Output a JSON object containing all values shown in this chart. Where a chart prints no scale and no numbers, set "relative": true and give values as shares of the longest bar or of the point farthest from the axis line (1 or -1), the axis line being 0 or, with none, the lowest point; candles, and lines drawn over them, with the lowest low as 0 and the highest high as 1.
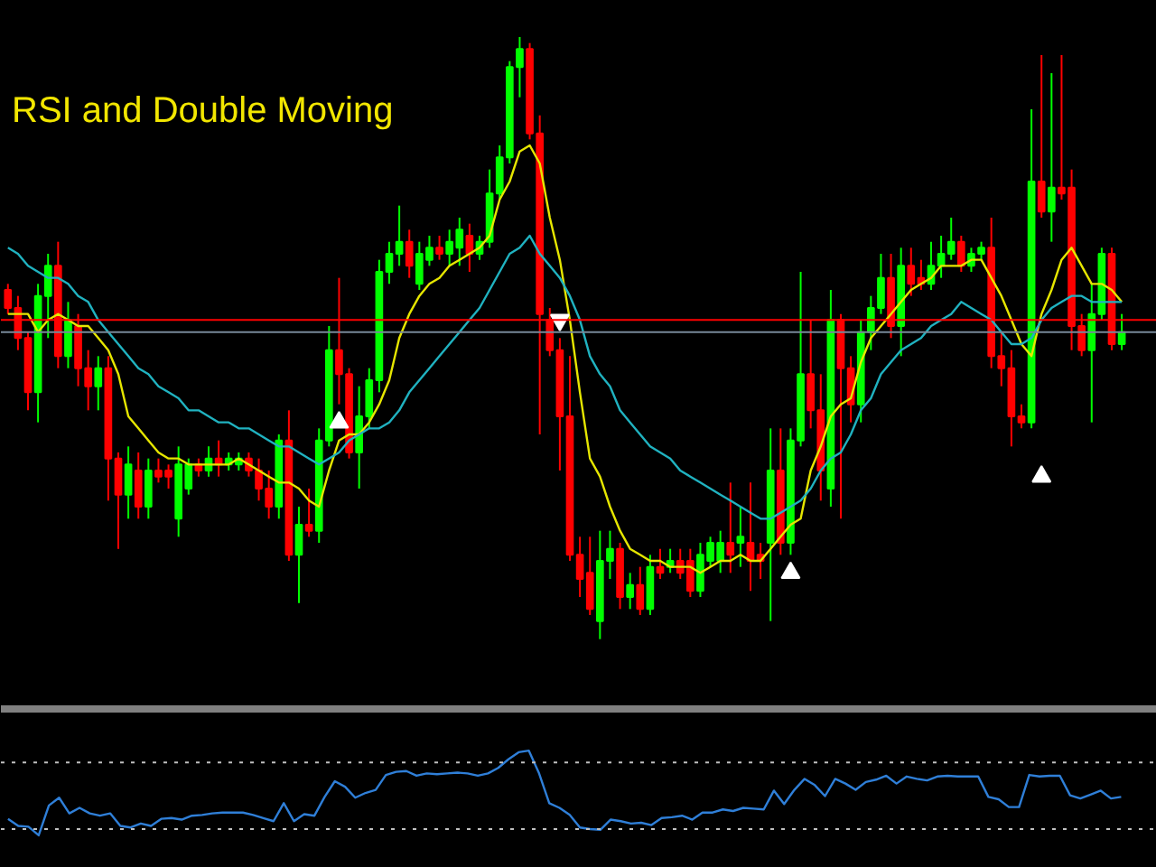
{
  "chart_data": [
    {
      "type": "candlestick",
      "title": "RSI and Double Moving",
      "relative": true,
      "categories": [
        null,
        null,
        null,
        null,
        null,
        null,
        null,
        null,
        null,
        null,
        null,
        null,
        null,
        null,
        null,
        null,
        null,
        null,
        null,
        null,
        null,
        null,
        null,
        null,
        null,
        null,
        null,
        null,
        null,
        null,
        null,
        null,
        null,
        null,
        null,
        null,
        null,
        null,
        null,
        null,
        null,
        null,
        null,
        null,
        null,
        null,
        null,
        null,
        null,
        null,
        null,
        null,
        null,
        null,
        null,
        null,
        null,
        null,
        null,
        null,
        null,
        null,
        null,
        null,
        null,
        null,
        null,
        null,
        null,
        null,
        null,
        null,
        null,
        null,
        null,
        null,
        null,
        null,
        null,
        null,
        null,
        null,
        null,
        null,
        null,
        null,
        null,
        null,
        null,
        null,
        null,
        null,
        null,
        null,
        null,
        null,
        null,
        null,
        null,
        null,
        null,
        null,
        null,
        null,
        null,
        null,
        null,
        null,
        null,
        null,
        null,
        null
      ],
      "ohlc": [
        [
          0.58,
          0.59,
          0.54,
          0.55
        ],
        [
          0.55,
          0.57,
          0.48,
          0.5
        ],
        [
          0.5,
          0.51,
          0.38,
          0.41
        ],
        [
          0.41,
          0.59,
          0.36,
          0.57
        ],
        [
          0.57,
          0.64,
          0.5,
          0.62
        ],
        [
          0.62,
          0.66,
          0.45,
          0.47
        ],
        [
          0.47,
          0.56,
          0.45,
          0.53
        ],
        [
          0.52,
          0.54,
          0.42,
          0.45
        ],
        [
          0.45,
          0.48,
          0.38,
          0.42
        ],
        [
          0.42,
          0.47,
          0.38,
          0.45
        ],
        [
          0.45,
          0.47,
          0.23,
          0.3
        ],
        [
          0.3,
          0.31,
          0.15,
          0.24
        ],
        [
          0.24,
          0.32,
          0.2,
          0.29
        ],
        [
          0.28,
          0.31,
          0.2,
          0.22
        ],
        [
          0.22,
          0.3,
          0.2,
          0.28
        ],
        [
          0.28,
          0.3,
          0.26,
          0.27
        ],
        [
          0.28,
          0.29,
          0.25,
          0.27
        ],
        [
          0.2,
          0.32,
          0.17,
          0.29
        ],
        [
          0.25,
          0.3,
          0.24,
          0.29
        ],
        [
          0.29,
          0.3,
          0.27,
          0.28
        ],
        [
          0.28,
          0.32,
          0.27,
          0.3
        ],
        [
          0.3,
          0.33,
          0.27,
          0.29
        ],
        [
          0.29,
          0.31,
          0.28,
          0.3
        ],
        [
          0.29,
          0.31,
          0.28,
          0.3
        ],
        [
          0.3,
          0.31,
          0.27,
          0.28
        ],
        [
          0.28,
          0.3,
          0.23,
          0.25
        ],
        [
          0.25,
          0.28,
          0.2,
          0.22
        ],
        [
          0.22,
          0.34,
          0.2,
          0.33
        ],
        [
          0.33,
          0.38,
          0.13,
          0.14
        ],
        [
          0.14,
          0.22,
          0.06,
          0.19
        ],
        [
          0.19,
          0.25,
          0.17,
          0.18
        ],
        [
          0.18,
          0.35,
          0.16,
          0.33
        ],
        [
          0.33,
          0.52,
          0.32,
          0.48
        ],
        [
          0.48,
          0.6,
          0.39,
          0.44
        ],
        [
          0.44,
          0.45,
          0.3,
          0.31
        ],
        [
          0.31,
          0.42,
          0.25,
          0.37
        ],
        [
          0.37,
          0.45,
          0.35,
          0.43
        ],
        [
          0.43,
          0.63,
          0.41,
          0.61
        ],
        [
          0.61,
          0.66,
          0.59,
          0.64
        ],
        [
          0.64,
          0.72,
          0.62,
          0.66
        ],
        [
          0.66,
          0.68,
          0.6,
          0.62
        ],
        [
          0.59,
          0.66,
          0.58,
          0.64
        ],
        [
          0.63,
          0.67,
          0.62,
          0.65
        ],
        [
          0.65,
          0.67,
          0.63,
          0.64
        ],
        [
          0.64,
          0.68,
          0.62,
          0.66
        ],
        [
          0.65,
          0.7,
          0.62,
          0.68
        ],
        [
          0.67,
          0.69,
          0.61,
          0.64
        ],
        [
          0.64,
          0.67,
          0.63,
          0.66
        ],
        [
          0.66,
          0.78,
          0.65,
          0.74
        ],
        [
          0.74,
          0.82,
          0.73,
          0.8
        ],
        [
          0.8,
          0.96,
          0.79,
          0.95
        ],
        [
          0.95,
          1.0,
          0.9,
          0.98
        ],
        [
          0.98,
          0.99,
          0.83,
          0.84
        ],
        [
          0.84,
          0.87,
          0.34,
          0.54
        ],
        [
          0.53,
          0.55,
          0.47,
          0.48
        ],
        [
          0.48,
          0.5,
          0.28,
          0.37
        ],
        [
          0.37,
          0.47,
          0.13,
          0.14
        ],
        [
          0.14,
          0.17,
          0.07,
          0.1
        ],
        [
          0.11,
          0.17,
          0.04,
          0.05
        ],
        [
          0.03,
          0.18,
          0,
          0.13
        ],
        [
          0.13,
          0.18,
          0.1,
          0.15
        ],
        [
          0.15,
          0.16,
          0.05,
          0.07
        ],
        [
          0.07,
          0.11,
          0.05,
          0.09
        ],
        [
          0.09,
          0.12,
          0.04,
          0.05
        ],
        [
          0.05,
          0.14,
          0.04,
          0.12
        ],
        [
          0.12,
          0.15,
          0.1,
          0.11
        ],
        [
          0.12,
          0.15,
          0.11,
          0.13
        ],
        [
          0.13,
          0.15,
          0.1,
          0.11
        ],
        [
          0.13,
          0.15,
          0.07,
          0.08
        ],
        [
          0.08,
          0.16,
          0.07,
          0.14
        ],
        [
          0.13,
          0.17,
          0.12,
          0.16
        ],
        [
          0.13,
          0.18,
          0.11,
          0.16
        ],
        [
          0.16,
          0.26,
          0.11,
          0.14
        ],
        [
          0.16,
          0.22,
          0.12,
          0.17
        ],
        [
          0.16,
          0.26,
          0.08,
          0.13
        ],
        [
          0.14,
          0.16,
          0.1,
          0.13
        ],
        [
          0.16,
          0.35,
          0.03,
          0.28
        ],
        [
          0.28,
          0.35,
          0.14,
          0.16
        ],
        [
          0.16,
          0.35,
          0.14,
          0.33
        ],
        [
          0.33,
          0.61,
          0.32,
          0.44
        ],
        [
          0.44,
          0.53,
          0.35,
          0.38
        ],
        [
          0.38,
          0.44,
          0.23,
          0.28
        ],
        [
          0.25,
          0.58,
          0.22,
          0.53
        ],
        [
          0.53,
          0.54,
          0.2,
          0.45
        ],
        [
          0.45,
          0.47,
          0.36,
          0.39
        ],
        [
          0.39,
          0.53,
          0.36,
          0.51
        ],
        [
          0.51,
          0.57,
          0.48,
          0.55
        ],
        [
          0.55,
          0.64,
          0.54,
          0.6
        ],
        [
          0.6,
          0.64,
          0.5,
          0.52
        ],
        [
          0.52,
          0.65,
          0.47,
          0.62
        ],
        [
          0.62,
          0.65,
          0.57,
          0.59
        ],
        [
          0.6,
          0.63,
          0.58,
          0.59
        ],
        [
          0.59,
          0.66,
          0.58,
          0.62
        ],
        [
          0.62,
          0.67,
          0.6,
          0.64
        ],
        [
          0.64,
          0.7,
          0.63,
          0.66
        ],
        [
          0.66,
          0.67,
          0.61,
          0.62
        ],
        [
          0.62,
          0.65,
          0.61,
          0.64
        ],
        [
          0.64,
          0.66,
          0.63,
          0.65
        ],
        [
          0.65,
          0.7,
          0.45,
          0.47
        ],
        [
          0.47,
          0.51,
          0.42,
          0.45
        ],
        [
          0.45,
          0.48,
          0.32,
          0.37
        ],
        [
          0.37,
          0.39,
          0.35,
          0.36
        ],
        [
          0.36,
          0.88,
          0.35,
          0.76
        ],
        [
          0.76,
          0.97,
          0.7,
          0.71
        ],
        [
          0.71,
          0.94,
          0.66,
          0.75
        ],
        [
          0.75,
          0.97,
          0.73,
          0.74
        ],
        [
          0.75,
          0.78,
          0.48,
          0.52
        ],
        [
          0.52,
          0.54,
          0.47,
          0.48
        ],
        [
          0.48,
          0.59,
          0.36,
          0.54
        ],
        [
          0.54,
          0.65,
          0.53,
          0.64
        ],
        [
          0.64,
          0.65,
          0.48,
          0.49
        ],
        [
          0.49,
          0.54,
          0.48,
          0.51
        ]
      ],
      "colors": [
        "#ff0000",
        "#ff0000",
        "#ff0000",
        "#00ff00",
        "#00ff00",
        "#ff0000",
        "#00ff00",
        "#ff0000",
        "#ff0000",
        "#00ff00",
        "#ff0000",
        "#ff0000",
        "#00ff00",
        "#ff0000",
        "#00ff00",
        "#ff0000",
        "#ff0000",
        "#00ff00",
        "#00ff00",
        "#ff0000",
        "#00ff00",
        "#ff0000",
        "#00ff00",
        "#00ff00",
        "#ff0000",
        "#ff0000",
        "#ff0000",
        "#00ff00",
        "#ff0000",
        "#00ff00",
        "#ff0000",
        "#00ff00",
        "#00ff00",
        "#ff0000",
        "#ff0000",
        "#00ff00",
        "#00ff00",
        "#00ff00",
        "#00ff00",
        "#00ff00",
        "#ff0000",
        "#00ff00",
        "#00ff00",
        "#ff0000",
        "#00ff00",
        "#00ff00",
        "#ff0000",
        "#00ff00",
        "#00ff00",
        "#00ff00",
        "#00ff00",
        "#00ff00",
        "#ff0000",
        "#ff0000",
        "#ff0000",
        "#ff0000",
        "#ff0000",
        "#ff0000",
        "#ff0000",
        "#00ff00",
        "#00ff00",
        "#ff0000",
        "#00ff00",
        "#ff0000",
        "#00ff00",
        "#ff0000",
        "#00ff00",
        "#ff0000",
        "#ff0000",
        "#00ff00",
        "#00ff00",
        "#00ff00",
        "#ff0000",
        "#00ff00",
        "#ff0000",
        "#ff0000",
        "#00ff00",
        "#ff0000",
        "#00ff00",
        "#00ff00",
        "#ff0000",
        "#ff0000",
        "#00ff00",
        "#ff0000",
        "#ff0000",
        "#00ff00",
        "#00ff00",
        "#00ff00",
        "#ff0000",
        "#00ff00",
        "#ff0000",
        "#ff0000",
        "#00ff00",
        "#00ff00",
        "#00ff00",
        "#ff0000",
        "#00ff00",
        "#00ff00",
        "#ff0000",
        "#ff0000",
        "#ff0000",
        "#ff0000",
        "#00ff00",
        "#ff0000",
        "#00ff00",
        "#ff0000",
        "#ff0000",
        "#ff0000",
        "#00ff00",
        "#00ff00",
        "#ff0000",
        "#00ff00"
      ],
      "series": [
        {
          "type": "line",
          "color": "#e6e600",
          "values": [
            0.54,
            0.54,
            0.54,
            0.51,
            0.53,
            0.54,
            0.53,
            0.52,
            0.52,
            0.5,
            0.48,
            0.44,
            0.37,
            0.35,
            0.33,
            0.31,
            0.3,
            0.3,
            0.29,
            0.29,
            0.29,
            0.29,
            0.29,
            0.3,
            0.29,
            0.28,
            0.27,
            0.26,
            0.26,
            0.25,
            0.23,
            0.22,
            0.28,
            0.33,
            0.34,
            0.34,
            0.36,
            0.39,
            0.43,
            0.5,
            0.54,
            0.57,
            0.59,
            0.6,
            0.62,
            0.63,
            0.64,
            0.65,
            0.67,
            0.73,
            0.76,
            0.81,
            0.82,
            0.79,
            0.7,
            0.63,
            0.53,
            0.41,
            0.3,
            0.27,
            0.22,
            0.18,
            0.15,
            0.14,
            0.13,
            0.13,
            0.12,
            0.12,
            0.12,
            0.11,
            0.12,
            0.13,
            0.13,
            0.14,
            0.13,
            0.13,
            0.15,
            0.17,
            0.19,
            0.2,
            0.28,
            0.32,
            0.37,
            0.39,
            0.4,
            0.46,
            0.5,
            0.52,
            0.54,
            0.56,
            0.58,
            0.59,
            0.6,
            0.62,
            0.62,
            0.62,
            0.63,
            0.63,
            0.6,
            0.57,
            0.53,
            0.49,
            0.47,
            0.54,
            0.58,
            0.63,
            0.65,
            0.62,
            0.59,
            0.59,
            0.58,
            0.56
          ]
        },
        {
          "type": "line",
          "color": "#20b2c0",
          "values": [
            0.65,
            0.64,
            0.62,
            0.61,
            0.6,
            0.6,
            0.59,
            0.57,
            0.56,
            0.53,
            0.51,
            0.49,
            0.47,
            0.45,
            0.44,
            0.42,
            0.41,
            0.4,
            0.38,
            0.38,
            0.37,
            0.36,
            0.36,
            0.35,
            0.35,
            0.34,
            0.33,
            0.32,
            0.32,
            0.31,
            0.3,
            0.29,
            0.3,
            0.31,
            0.33,
            0.34,
            0.35,
            0.35,
            0.36,
            0.38,
            0.41,
            0.43,
            0.45,
            0.47,
            0.49,
            0.51,
            0.53,
            0.55,
            0.58,
            0.61,
            0.64,
            0.65,
            0.67,
            0.64,
            0.62,
            0.6,
            0.57,
            0.53,
            0.47,
            0.44,
            0.42,
            0.38,
            0.36,
            0.34,
            0.32,
            0.31,
            0.3,
            0.28,
            0.27,
            0.26,
            0.25,
            0.24,
            0.23,
            0.22,
            0.21,
            0.2,
            0.2,
            0.21,
            0.22,
            0.23,
            0.25,
            0.28,
            0.3,
            0.31,
            0.34,
            0.38,
            0.4,
            0.44,
            0.46,
            0.48,
            0.49,
            0.5,
            0.52,
            0.53,
            0.54,
            0.56,
            0.55,
            0.54,
            0.53,
            0.51,
            0.49,
            0.49,
            0.5,
            0.53,
            0.55,
            0.56,
            0.57,
            0.57,
            0.56,
            0.56,
            0.56,
            0.56
          ]
        },
        {
          "type": "scatter",
          "color": "#ffffff",
          "marker": "triangle",
          "values": [
            null,
            null,
            null,
            null,
            null,
            null,
            null,
            null,
            null,
            null,
            null,
            null,
            null,
            null,
            null,
            null,
            null,
            null,
            null,
            null,
            null,
            null,
            null,
            null,
            null,
            null,
            null,
            null,
            null,
            null,
            null,
            null,
            null,
            0.36,
            null,
            null,
            null,
            null,
            null,
            null,
            null,
            null,
            null,
            null,
            null,
            null,
            null,
            null,
            null,
            null,
            null,
            null,
            null,
            null,
            null,
            null,
            null,
            null,
            null,
            null,
            null,
            null,
            null,
            null,
            null,
            null,
            null,
            null,
            null,
            null,
            null,
            null,
            null,
            null,
            null,
            null,
            null,
            null,
            0.11,
            null,
            null,
            null,
            null,
            null,
            null,
            null,
            null,
            null,
            null,
            null,
            null,
            null,
            null,
            null,
            null,
            null,
            null,
            null,
            null,
            null,
            null,
            null,
            null,
            0.27,
            null,
            null,
            null,
            null,
            null,
            null,
            null,
            null
          ]
        },
        {
          "type": "scatter",
          "color": "#ffffff",
          "values": [
            null,
            null,
            null,
            null,
            null,
            null,
            null,
            null,
            null,
            null,
            null,
            null,
            null,
            null,
            null,
            null,
            null,
            null,
            null,
            null,
            null,
            null,
            null,
            null,
            null,
            null,
            null,
            null,
            null,
            null,
            null,
            null,
            null,
            null,
            null,
            null,
            null,
            null,
            null,
            null,
            null,
            null,
            null,
            null,
            null,
            null,
            null,
            null,
            null,
            null,
            null,
            null,
            null,
            null,
            null,
            0.53,
            null,
            null,
            null,
            null,
            null,
            null,
            null,
            null,
            null,
            null,
            null,
            null,
            null,
            null,
            null,
            null,
            null,
            null,
            null,
            null,
            null,
            null,
            null,
            null,
            null,
            null,
            null,
            null,
            null,
            null,
            null,
            null,
            null,
            null,
            null,
            null,
            null,
            null,
            null,
            null,
            null,
            null,
            null,
            null,
            null,
            null,
            null,
            null,
            null,
            null,
            null,
            null,
            null,
            null,
            null,
            null
          ]
        }
      ],
      "ref_lines": [
        {
          "axis": "y",
          "value": 0.53,
          "color": "#ff0000"
        },
        {
          "axis": "y",
          "value": 0.51,
          "color": "#778899"
        }
      ]
    },
    {
      "type": "line",
      "relative": true,
      "categories": [
        null,
        null,
        null,
        null,
        null,
        null,
        null,
        null,
        null,
        null,
        null,
        null,
        null,
        null,
        null,
        null,
        null,
        null,
        null,
        null,
        null,
        null,
        null,
        null,
        null,
        null,
        null,
        null,
        null,
        null,
        null,
        null,
        null,
        null,
        null,
        null,
        null,
        null,
        null,
        null,
        null,
        null,
        null,
        null,
        null,
        null,
        null,
        null,
        null,
        null,
        null,
        null,
        null,
        null,
        null,
        null,
        null,
        null,
        null,
        null,
        null,
        null,
        null,
        null,
        null,
        null,
        null,
        null,
        null,
        null,
        null,
        null,
        null,
        null,
        null,
        null,
        null,
        null,
        null,
        null,
        null,
        null,
        null,
        null,
        null,
        null,
        null,
        null,
        null,
        null,
        null,
        null,
        null,
        null,
        null,
        null,
        null,
        null,
        null,
        null,
        null,
        null,
        null,
        null,
        null,
        null,
        null,
        null,
        null,
        null
      ],
      "series": [
        {
          "color": "#2f7fd8",
          "values": [
            0.13,
            0.04,
            0.03,
            -0.08,
            0.3,
            0.4,
            0.2,
            0.27,
            0.2,
            0.17,
            0.2,
            0.04,
            0.02,
            0.07,
            0.04,
            0.13,
            0.14,
            0.12,
            0.17,
            0.18,
            0.2,
            0.21,
            0.21,
            0.21,
            0.18,
            0.14,
            0.1,
            0.33,
            0.1,
            0.19,
            0.17,
            0.41,
            0.61,
            0.54,
            0.4,
            0.46,
            0.5,
            0.69,
            0.73,
            0.74,
            0.68,
            0.71,
            0.7,
            0.71,
            0.72,
            0.71,
            0.68,
            0.71,
            0.78,
            0.89,
            0.98,
            1.0,
            0.71,
            0.33,
            0.27,
            0.18,
            0.02,
            0,
            -0.01,
            0.12,
            0.1,
            0.07,
            0.08,
            0.05,
            0.14,
            0.15,
            0.17,
            0.12,
            0.21,
            0.21,
            0.25,
            0.23,
            0.27,
            0.26,
            0.25,
            0.49,
            0.32,
            0.5,
            0.64,
            0.56,
            0.42,
            0.64,
            0.58,
            0.5,
            0.6,
            0.63,
            0.68,
            0.58,
            0.67,
            0.64,
            0.62,
            0.67,
            0.68,
            0.67,
            0.67,
            0.67,
            0.41,
            0.38,
            0.28,
            0.28,
            0.69,
            0.67,
            0.68,
            0.68,
            0.43,
            0.39,
            0.44,
            0.49,
            0.39,
            0.41
          ]
        }
      ],
      "ref_lines": [
        {
          "axis": "y",
          "value": 0.85,
          "color": "#c0c0c0",
          "line_style": "dotted"
        },
        {
          "axis": "y",
          "value": 0,
          "color": "#c0c0c0",
          "line_style": "dotted"
        }
      ]
    }
  ]
}
